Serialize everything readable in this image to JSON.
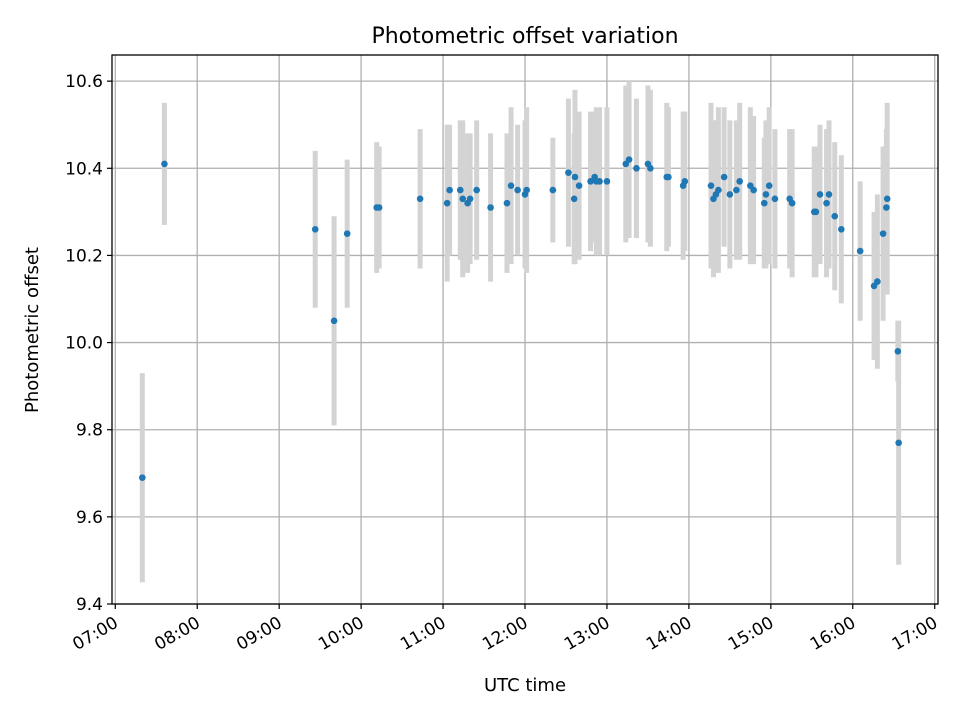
{
  "chart_data": {
    "type": "scatter",
    "title": "Photometric offset variation",
    "xlabel": "UTC time",
    "ylabel": "Photometric offset",
    "x_unit": "hours UTC",
    "xlim": [
      6.96,
      17.04
    ],
    "ylim": [
      9.4,
      10.66
    ],
    "xticks": [
      7,
      8,
      9,
      10,
      11,
      12,
      13,
      14,
      15,
      16,
      17
    ],
    "xtick_labels": [
      "07:00",
      "08:00",
      "09:00",
      "10:00",
      "11:00",
      "12:00",
      "13:00",
      "14:00",
      "15:00",
      "16:00",
      "17:00"
    ],
    "yticks": [
      9.4,
      9.6,
      9.8,
      10.0,
      10.2,
      10.4,
      10.6
    ],
    "ytick_labels": [
      "9.4",
      "9.6",
      "9.8",
      "10.0",
      "10.2",
      "10.4",
      "10.6"
    ],
    "grid": true,
    "colors": {
      "point": "#1f77b4",
      "errorbar": "#d3d3d3",
      "grid": "#b0b0b0"
    },
    "series": [
      {
        "x": [
          7.33,
          7.6,
          9.44,
          9.67,
          9.83,
          10.19,
          10.22,
          10.72,
          11.05,
          11.08,
          11.21,
          11.24,
          11.3,
          11.33,
          11.41,
          11.58,
          11.78,
          11.83,
          11.91,
          12.0,
          12.02,
          12.34,
          12.53,
          12.6,
          12.61,
          12.66,
          12.8,
          12.85,
          12.87,
          12.91,
          13.0,
          13.23,
          13.27,
          13.36,
          13.5,
          13.53,
          13.73,
          13.75,
          13.93,
          13.95,
          14.27,
          14.3,
          14.33,
          14.36,
          14.43,
          14.5,
          14.58,
          14.62,
          14.75,
          14.79,
          14.92,
          14.94,
          14.98,
          15.05,
          15.23,
          15.26,
          15.53,
          15.55,
          15.6,
          15.68,
          15.71,
          15.78,
          15.86,
          16.09,
          16.26,
          16.3,
          16.37,
          16.41,
          16.42,
          16.55,
          16.56
        ],
        "y": [
          9.69,
          10.41,
          10.26,
          10.05,
          10.25,
          10.31,
          10.31,
          10.33,
          10.32,
          10.35,
          10.35,
          10.33,
          10.32,
          10.33,
          10.35,
          10.31,
          10.32,
          10.36,
          10.35,
          10.34,
          10.35,
          10.35,
          10.39,
          10.33,
          10.38,
          10.36,
          10.37,
          10.38,
          10.37,
          10.37,
          10.37,
          10.41,
          10.42,
          10.4,
          10.41,
          10.4,
          10.38,
          10.38,
          10.36,
          10.37,
          10.36,
          10.33,
          10.34,
          10.35,
          10.38,
          10.34,
          10.35,
          10.37,
          10.36,
          10.35,
          10.32,
          10.34,
          10.36,
          10.33,
          10.33,
          10.32,
          10.3,
          10.3,
          10.34,
          10.32,
          10.34,
          10.29,
          10.26,
          10.21,
          10.13,
          10.14,
          10.25,
          10.31,
          10.33,
          9.98,
          9.77
        ],
        "err": [
          0.24,
          0.14,
          0.18,
          0.24,
          0.17,
          0.15,
          0.14,
          0.16,
          0.18,
          0.15,
          0.16,
          0.18,
          0.16,
          0.15,
          0.16,
          0.17,
          0.16,
          0.18,
          0.15,
          0.17,
          0.19,
          0.12,
          0.17,
          0.15,
          0.2,
          0.17,
          0.16,
          0.15,
          0.17,
          0.17,
          0.17,
          0.18,
          0.18,
          0.16,
          0.18,
          0.18,
          0.17,
          0.16,
          0.17,
          0.16,
          0.19,
          0.18,
          0.17,
          0.19,
          0.16,
          0.17,
          0.16,
          0.18,
          0.18,
          0.17,
          0.15,
          0.17,
          0.18,
          0.16,
          0.16,
          0.17,
          0.15,
          0.15,
          0.16,
          0.17,
          0.17,
          0.17,
          0.17,
          0.16,
          0.17,
          0.2,
          0.2,
          0.18,
          0.22,
          0.07,
          0.28
        ]
      }
    ]
  }
}
